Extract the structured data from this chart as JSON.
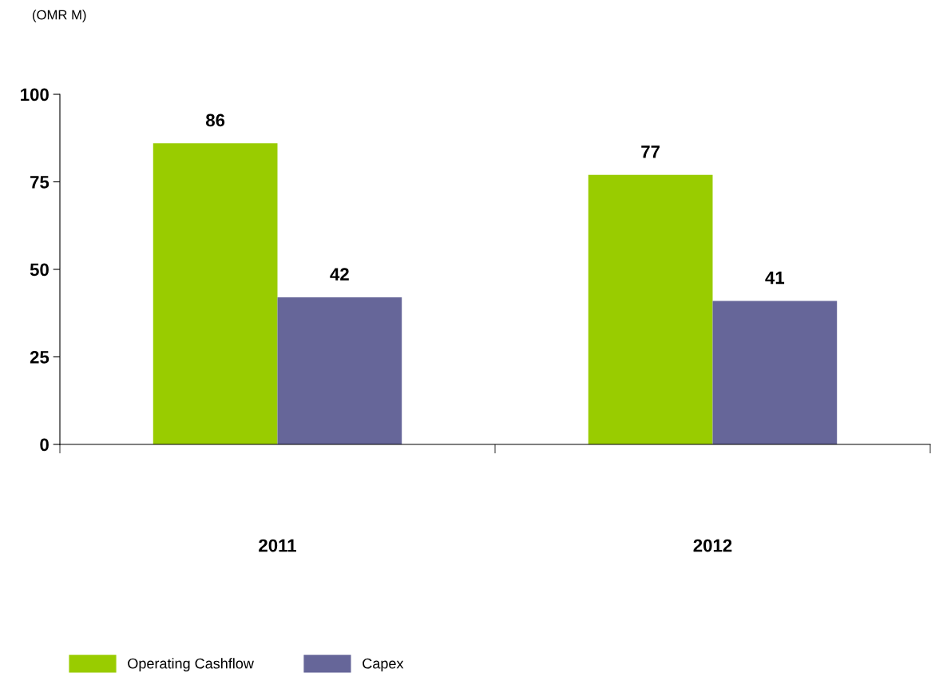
{
  "chart_data": {
    "type": "bar",
    "ylabel": "(OMR M)",
    "categories": [
      "2011",
      "2012"
    ],
    "series": [
      {
        "name": "Operating Cashflow",
        "color": "#99cc00",
        "values": [
          86,
          77
        ]
      },
      {
        "name": "Capex",
        "color": "#666699",
        "values": [
          42,
          41
        ]
      }
    ],
    "ylim": [
      0,
      100
    ],
    "yticks": [
      0,
      25,
      50,
      75,
      100
    ],
    "grid": false,
    "legend": "bottom left",
    "data_labels": true
  }
}
